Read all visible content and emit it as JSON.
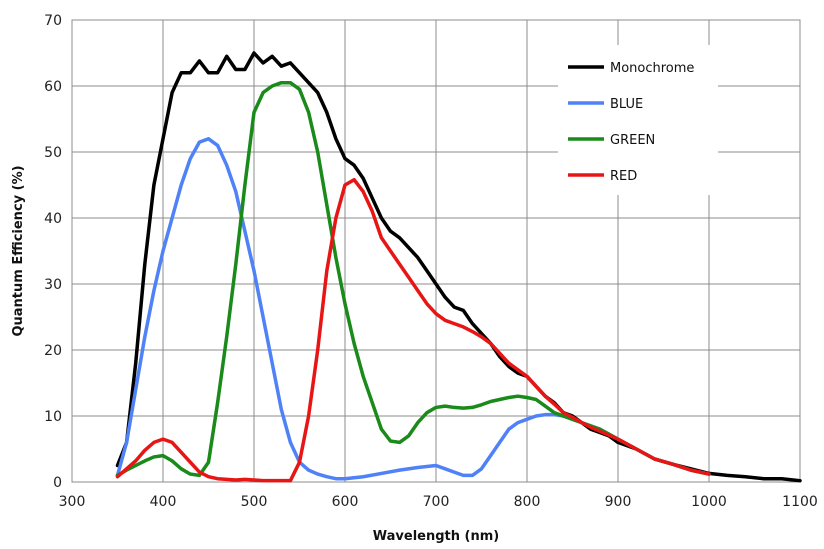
{
  "chart_data": {
    "type": "line",
    "xlabel": "Wavelength (nm)",
    "ylabel": "Quantum Efficiency  (%)",
    "xlim": [
      300,
      1100
    ],
    "ylim": [
      0,
      70
    ],
    "xticks": [
      300,
      400,
      500,
      600,
      700,
      800,
      900,
      1000,
      1100
    ],
    "yticks": [
      0,
      10,
      20,
      30,
      40,
      50,
      60,
      70
    ],
    "grid": true,
    "legend_position": "top-right",
    "series": [
      {
        "name": "Monochrome",
        "color": "#000000",
        "points": [
          [
            350,
            2.5
          ],
          [
            360,
            6
          ],
          [
            370,
            18
          ],
          [
            380,
            33
          ],
          [
            390,
            45
          ],
          [
            400,
            52
          ],
          [
            410,
            59
          ],
          [
            420,
            62
          ],
          [
            430,
            62
          ],
          [
            440,
            63.8
          ],
          [
            450,
            62
          ],
          [
            460,
            62
          ],
          [
            470,
            64.5
          ],
          [
            480,
            62.5
          ],
          [
            490,
            62.5
          ],
          [
            500,
            65
          ],
          [
            510,
            63.5
          ],
          [
            520,
            64.5
          ],
          [
            530,
            63
          ],
          [
            540,
            63.5
          ],
          [
            550,
            62
          ],
          [
            560,
            60.5
          ],
          [
            570,
            59
          ],
          [
            580,
            56
          ],
          [
            590,
            52
          ],
          [
            600,
            49
          ],
          [
            610,
            48
          ],
          [
            620,
            46
          ],
          [
            630,
            43
          ],
          [
            640,
            40
          ],
          [
            650,
            38
          ],
          [
            660,
            37
          ],
          [
            670,
            35.5
          ],
          [
            680,
            34
          ],
          [
            690,
            32
          ],
          [
            700,
            30
          ],
          [
            710,
            28
          ],
          [
            720,
            26.5
          ],
          [
            730,
            26
          ],
          [
            740,
            24
          ],
          [
            750,
            22.5
          ],
          [
            760,
            21
          ],
          [
            770,
            19
          ],
          [
            780,
            17.5
          ],
          [
            790,
            16.5
          ],
          [
            800,
            16
          ],
          [
            810,
            14.5
          ],
          [
            820,
            13
          ],
          [
            830,
            12
          ],
          [
            840,
            10.5
          ],
          [
            850,
            10
          ],
          [
            860,
            9
          ],
          [
            870,
            8
          ],
          [
            880,
            7.5
          ],
          [
            890,
            7
          ],
          [
            900,
            6
          ],
          [
            920,
            5
          ],
          [
            940,
            3.5
          ],
          [
            960,
            2.7
          ],
          [
            980,
            2
          ],
          [
            1000,
            1.3
          ],
          [
            1020,
            1
          ],
          [
            1040,
            0.8
          ],
          [
            1060,
            0.5
          ],
          [
            1080,
            0.5
          ],
          [
            1100,
            0.2
          ]
        ]
      },
      {
        "name": "BLUE",
        "color": "#4f81f7",
        "points": [
          [
            350,
            1
          ],
          [
            360,
            6
          ],
          [
            370,
            14
          ],
          [
            380,
            22
          ],
          [
            390,
            29
          ],
          [
            400,
            35
          ],
          [
            410,
            40
          ],
          [
            420,
            45
          ],
          [
            430,
            49
          ],
          [
            440,
            51.5
          ],
          [
            450,
            52
          ],
          [
            460,
            51
          ],
          [
            470,
            48
          ],
          [
            480,
            44
          ],
          [
            490,
            38
          ],
          [
            500,
            32
          ],
          [
            510,
            25
          ],
          [
            520,
            18
          ],
          [
            530,
            11
          ],
          [
            540,
            6
          ],
          [
            550,
            3
          ],
          [
            560,
            1.8
          ],
          [
            570,
            1.2
          ],
          [
            580,
            0.8
          ],
          [
            590,
            0.5
          ],
          [
            600,
            0.5
          ],
          [
            620,
            0.8
          ],
          [
            640,
            1.3
          ],
          [
            660,
            1.8
          ],
          [
            680,
            2.2
          ],
          [
            700,
            2.5
          ],
          [
            710,
            2
          ],
          [
            720,
            1.5
          ],
          [
            730,
            1
          ],
          [
            740,
            1
          ],
          [
            750,
            2
          ],
          [
            760,
            4
          ],
          [
            770,
            6
          ],
          [
            780,
            8
          ],
          [
            790,
            9
          ],
          [
            800,
            9.5
          ],
          [
            810,
            10
          ],
          [
            820,
            10.2
          ],
          [
            830,
            10.2
          ],
          [
            840,
            10
          ],
          [
            850,
            9.5
          ],
          [
            860,
            9
          ],
          [
            870,
            8.5
          ],
          [
            880,
            8
          ],
          [
            900,
            6.5
          ],
          [
            920,
            5
          ],
          [
            940,
            3.5
          ],
          [
            960,
            2.7
          ],
          [
            980,
            1.8
          ],
          [
            1000,
            1.2
          ]
        ]
      },
      {
        "name": "GREEN",
        "color": "#1a8a1a",
        "points": [
          [
            350,
            1
          ],
          [
            360,
            1.8
          ],
          [
            370,
            2.5
          ],
          [
            380,
            3.2
          ],
          [
            390,
            3.8
          ],
          [
            400,
            4
          ],
          [
            410,
            3.2
          ],
          [
            420,
            2
          ],
          [
            430,
            1.2
          ],
          [
            440,
            1
          ],
          [
            450,
            3
          ],
          [
            460,
            12
          ],
          [
            470,
            22
          ],
          [
            480,
            33
          ],
          [
            490,
            45
          ],
          [
            500,
            56
          ],
          [
            510,
            59
          ],
          [
            520,
            60
          ],
          [
            530,
            60.5
          ],
          [
            540,
            60.5
          ],
          [
            550,
            59.5
          ],
          [
            560,
            56
          ],
          [
            570,
            50
          ],
          [
            580,
            42
          ],
          [
            590,
            34
          ],
          [
            600,
            27
          ],
          [
            610,
            21
          ],
          [
            620,
            16
          ],
          [
            630,
            12
          ],
          [
            640,
            8
          ],
          [
            650,
            6.2
          ],
          [
            660,
            6
          ],
          [
            670,
            7
          ],
          [
            680,
            9
          ],
          [
            690,
            10.5
          ],
          [
            700,
            11.3
          ],
          [
            710,
            11.5
          ],
          [
            720,
            11.3
          ],
          [
            730,
            11.2
          ],
          [
            740,
            11.3
          ],
          [
            750,
            11.7
          ],
          [
            760,
            12.2
          ],
          [
            770,
            12.5
          ],
          [
            780,
            12.8
          ],
          [
            790,
            13
          ],
          [
            800,
            12.8
          ],
          [
            810,
            12.5
          ],
          [
            820,
            11.5
          ],
          [
            830,
            10.5
          ],
          [
            840,
            10
          ],
          [
            850,
            9.5
          ],
          [
            860,
            9
          ],
          [
            870,
            8.5
          ],
          [
            880,
            8
          ],
          [
            900,
            6.5
          ],
          [
            920,
            5
          ],
          [
            940,
            3.5
          ],
          [
            960,
            2.7
          ],
          [
            980,
            1.8
          ],
          [
            1000,
            1.2
          ]
        ]
      },
      {
        "name": "RED",
        "color": "#e81515",
        "points": [
          [
            350,
            0.8
          ],
          [
            360,
            2
          ],
          [
            370,
            3.2
          ],
          [
            380,
            4.8
          ],
          [
            390,
            6
          ],
          [
            400,
            6.5
          ],
          [
            410,
            6
          ],
          [
            420,
            4.5
          ],
          [
            430,
            3
          ],
          [
            440,
            1.5
          ],
          [
            450,
            0.8
          ],
          [
            460,
            0.5
          ],
          [
            470,
            0.4
          ],
          [
            480,
            0.3
          ],
          [
            490,
            0.4
          ],
          [
            500,
            0.3
          ],
          [
            510,
            0.2
          ],
          [
            520,
            0.2
          ],
          [
            530,
            0.2
          ],
          [
            540,
            0.2
          ],
          [
            550,
            3
          ],
          [
            560,
            10
          ],
          [
            570,
            20
          ],
          [
            580,
            32
          ],
          [
            590,
            40
          ],
          [
            600,
            45
          ],
          [
            610,
            45.8
          ],
          [
            620,
            44
          ],
          [
            630,
            41
          ],
          [
            640,
            37
          ],
          [
            650,
            35
          ],
          [
            660,
            33
          ],
          [
            670,
            31
          ],
          [
            680,
            29
          ],
          [
            690,
            27
          ],
          [
            700,
            25.5
          ],
          [
            710,
            24.5
          ],
          [
            720,
            24
          ],
          [
            730,
            23.5
          ],
          [
            740,
            22.8
          ],
          [
            750,
            22
          ],
          [
            760,
            21
          ],
          [
            770,
            19.5
          ],
          [
            780,
            18
          ],
          [
            790,
            17
          ],
          [
            800,
            16
          ],
          [
            810,
            14.5
          ],
          [
            820,
            13
          ],
          [
            830,
            11.8
          ],
          [
            840,
            10.5
          ],
          [
            850,
            9.8
          ],
          [
            860,
            9
          ],
          [
            870,
            8.3
          ],
          [
            880,
            7.7
          ],
          [
            900,
            6.5
          ],
          [
            920,
            5
          ],
          [
            940,
            3.5
          ],
          [
            960,
            2.7
          ],
          [
            980,
            1.8
          ],
          [
            1000,
            1.2
          ]
        ]
      }
    ]
  }
}
